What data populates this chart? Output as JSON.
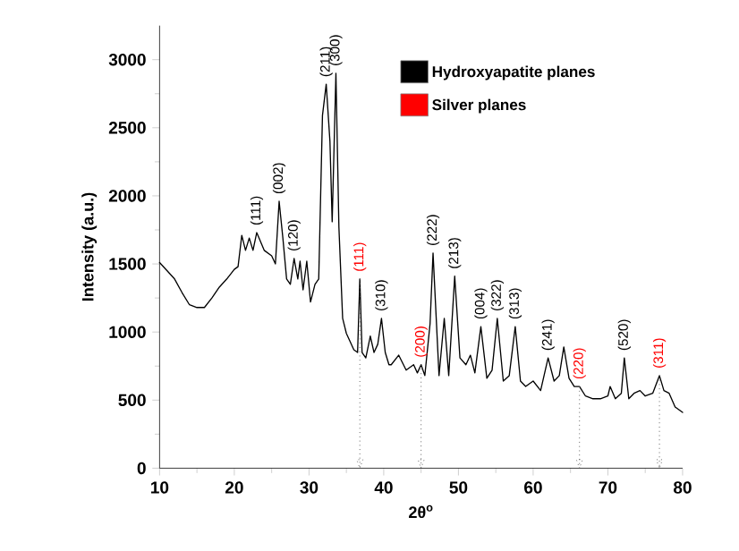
{
  "chart_data": {
    "type": "line",
    "xlabel": "2θ$^{o}$",
    "ylabel": "Intensity (a.u.)",
    "xlim": [
      10,
      80
    ],
    "ylim": [
      0,
      3250
    ],
    "xticks": [
      10,
      20,
      30,
      40,
      50,
      60,
      70,
      80
    ],
    "yticks": [
      0,
      500,
      1000,
      1500,
      2000,
      2500,
      3000
    ],
    "legend": "top right",
    "series": [
      {
        "color": "#000000",
        "line_style": "solid",
        "x": [
          10,
          12,
          13,
          14,
          15,
          16,
          17,
          18,
          19,
          20,
          20.5,
          21,
          21.5,
          22,
          22.5,
          23,
          24,
          25,
          25.5,
          26,
          26.5,
          27,
          27.5,
          28,
          28.5,
          28.8,
          29.2,
          29.7,
          30.2,
          30.8,
          31.3,
          31.8,
          32.3,
          32.8,
          33.1,
          33.6,
          34,
          34.5,
          35,
          35.5,
          36,
          36.5,
          36.8,
          37.1,
          37.6,
          38.2,
          38.7,
          39.2,
          39.7,
          40.2,
          40.7,
          41,
          42,
          43,
          44,
          44.5,
          45,
          45.5,
          46.2,
          46.6,
          47.4,
          48.1,
          48.7,
          49.5,
          50.2,
          51,
          51.6,
          52.2,
          53,
          53.8,
          54.5,
          55.2,
          56,
          56.8,
          57.6,
          58.3,
          59,
          60,
          61,
          62,
          62.8,
          63.5,
          64.1,
          64.8,
          65.5,
          66.2,
          67,
          68,
          69,
          70,
          70.3,
          71,
          71.8,
          72.2,
          72.8,
          73.5,
          74.3,
          75,
          76,
          76.9,
          77.5,
          78.2,
          79,
          80
        ],
        "values": [
          1510,
          1390,
          1290,
          1200,
          1180,
          1180,
          1250,
          1330,
          1390,
          1460,
          1480,
          1710,
          1600,
          1690,
          1600,
          1730,
          1600,
          1560,
          1500,
          1960,
          1690,
          1390,
          1350,
          1540,
          1390,
          1520,
          1310,
          1520,
          1220,
          1350,
          1390,
          2590,
          2820,
          2400,
          1810,
          2900,
          1770,
          1100,
          990,
          930,
          870,
          850,
          1390,
          850,
          810,
          970,
          850,
          910,
          1100,
          850,
          760,
          760,
          830,
          720,
          760,
          700,
          760,
          680,
          1060,
          1580,
          680,
          1100,
          680,
          1410,
          810,
          760,
          830,
          700,
          1040,
          660,
          720,
          1100,
          640,
          680,
          1040,
          640,
          600,
          640,
          570,
          810,
          640,
          680,
          890,
          660,
          600,
          600,
          530,
          510,
          510,
          530,
          600,
          510,
          550,
          810,
          510,
          550,
          570,
          530,
          550,
          680,
          570,
          550,
          450,
          410
        ]
      },
      {
        "name": "Hydroxyapatite planes",
        "color": "#000000"
      },
      {
        "name": "Silver planes",
        "color": "#ff0000"
      }
    ],
    "annotations": [
      {
        "text": "(111)",
        "x": 23,
        "y": 1730
      },
      {
        "text": "(002)",
        "x": 26,
        "y": 1960
      },
      {
        "text": "(120)",
        "x": 28,
        "y": 1540
      },
      {
        "text": "(211)",
        "x": 32.3,
        "y": 2820
      },
      {
        "text": "(300)",
        "x": 33.6,
        "y": 2900
      },
      {
        "text": "(111)",
        "x": 36.8,
        "y": 1390
      },
      {
        "text": "(310)",
        "x": 39.7,
        "y": 1100
      },
      {
        "text": "(200)",
        "x": 45,
        "y": 760
      },
      {
        "text": "(222)",
        "x": 46.6,
        "y": 1580
      },
      {
        "text": "(213)",
        "x": 49.5,
        "y": 1410
      },
      {
        "text": "(004)",
        "x": 53,
        "y": 1040
      },
      {
        "text": "(322)",
        "x": 55.2,
        "y": 1100
      },
      {
        "text": "(313)",
        "x": 57.6,
        "y": 1040
      },
      {
        "text": "(241)",
        "x": 62,
        "y": 810
      },
      {
        "text": "(220)",
        "x": 66.2,
        "y": 600
      },
      {
        "text": "(520)",
        "x": 72.2,
        "y": 810
      },
      {
        "text": "(311)",
        "x": 76.9,
        "y": 680
      }
    ],
    "ref_lines": [
      {
        "axis": "x",
        "value": 36.8,
        "color": "#555555",
        "line_style": "dotted"
      },
      {
        "axis": "x",
        "value": 45,
        "color": "#555555",
        "line_style": "dotted"
      },
      {
        "axis": "x",
        "value": 66.2,
        "color": "#555555",
        "line_style": "dotted"
      },
      {
        "axis": "x",
        "value": 76.9,
        "color": "#555555",
        "line_style": "dotted"
      }
    ]
  }
}
